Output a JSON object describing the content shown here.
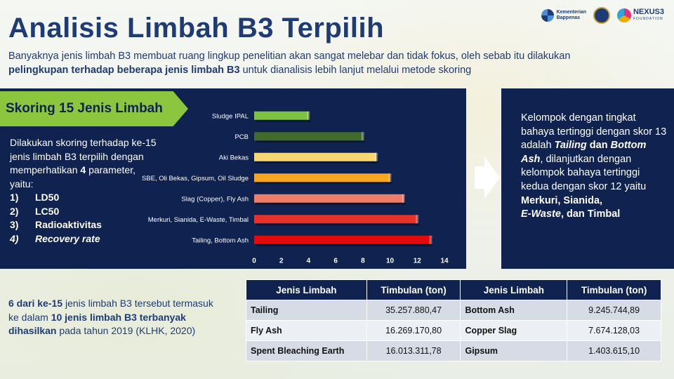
{
  "title": "Analisis Limbah B3 Terpilih",
  "logos": {
    "bappenas": [
      "Kementerian",
      "Bappenas"
    ],
    "nexus": "NEXUS3",
    "nexus_sub": "FOUNDATION"
  },
  "intro": {
    "line1": "Banyaknya jenis limbah B3 membuat ruang lingkup penelitian akan sangat melebar dan tidak fokus, oleh sebab itu dilakukan",
    "line2_bold": "pelingkupan terhadap beberapa jenis limbah B3",
    "line2_rest": " untuk dianalisis lebih lanjut melalui metode skoring"
  },
  "scoring_label": "Skoring 15 Jenis Limbah",
  "params": {
    "text_a": "Dilakukan skoring terhadap ke-15 jenis limbah B3 terpilih dengan memperhatikan ",
    "text_bold": "4",
    "text_b": " parameter, yaitu:",
    "items": [
      {
        "n": "1)",
        "label": "LD50"
      },
      {
        "n": "2)",
        "label": "LC50"
      },
      {
        "n": "3)",
        "label": "Radioaktivitas"
      },
      {
        "n": "4)",
        "label": "Recovery rate"
      }
    ]
  },
  "chart_data": {
    "type": "bar",
    "orientation": "horizontal",
    "categories": [
      "Sludge IPAL",
      "PCB",
      "Aki Bekas",
      "SBE, Oli Bekas, Gipsum, Oil Sludge",
      "Slag (Copper), Fly Ash",
      "Merkuri, Sianida, E-Waste, Timbal",
      "Tailing, Bottom Ash"
    ],
    "values": [
      4,
      8,
      9,
      10,
      11,
      12,
      13
    ],
    "colors": [
      "#7dc242",
      "#3f6b2c",
      "#f7d774",
      "#f5a623",
      "#f07c6a",
      "#e8312a",
      "#e10b0b"
    ],
    "xlim": [
      0,
      14
    ],
    "xticks": [
      0,
      2,
      4,
      6,
      8,
      10,
      12,
      14
    ],
    "grid": false
  },
  "right_box": {
    "p1": "Kelompok dengan tingkat bahaya tertinggi dengan skor 13 adalah ",
    "b1": "Tailing",
    "p2": " dan ",
    "b2": "Bottom Ash",
    "p3": ", dilanjutkan dengan kelompok bahaya tertinggi kedua dengan skor 12 yaitu ",
    "b3": "Merkuri, Sianida,",
    "b4": "E-Waste",
    "p4": ", dan Timbal"
  },
  "bottom_note": {
    "b1": "6 dari ke-15",
    "p1": " jenis limbah B3 tersebut termasuk ke dalam ",
    "b2": "10 jenis limbah B3 terbanyak dihasilkan",
    "p2": " pada tahun 2019 (KLHK, 2020)"
  },
  "table": {
    "headers": [
      "Jenis Limbah",
      "Timbulan (ton)",
      "Jenis Limbah",
      "Timbulan (ton)"
    ],
    "rows": [
      [
        "Tailing",
        "35.257.880,47",
        "Bottom Ash",
        "9.245.744,89"
      ],
      [
        "Fly Ash",
        "16.269.170,80",
        "Copper Slag",
        "7.674.128,03"
      ],
      [
        "Spent Bleaching Earth",
        "16.013.311,78",
        "Gipsum",
        "1.403.615,10"
      ]
    ]
  }
}
